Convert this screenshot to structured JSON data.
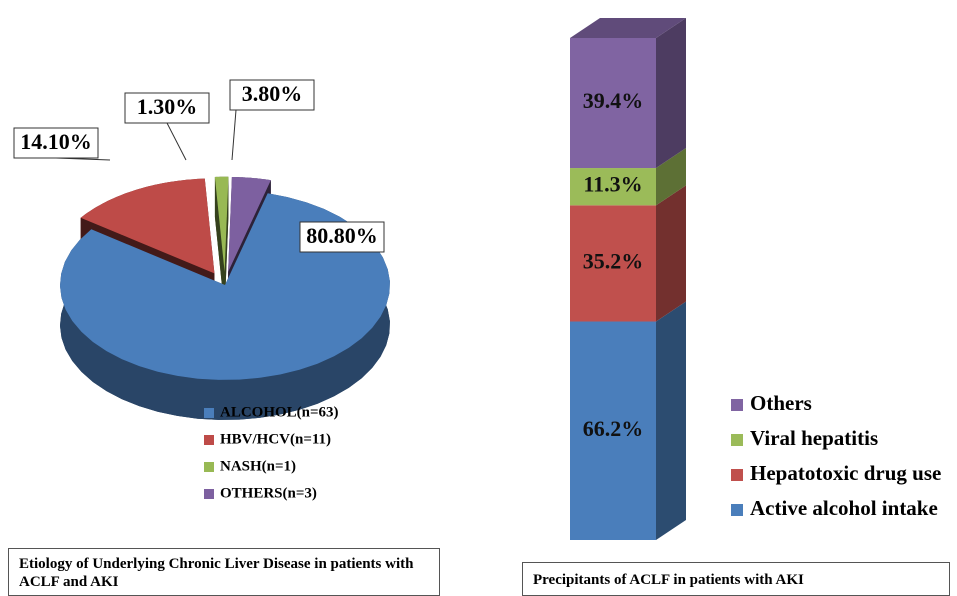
{
  "chart_data": [
    {
      "type": "pie",
      "title": "Etiology of Underlying Chronic Liver Disease in patients with ACLF and AKI",
      "categories": [
        "ALCOHOL(n=63)",
        "HBV/HCV(n=11)",
        "NASH(n=1)",
        "OTHERS(n=3)"
      ],
      "values": [
        80.8,
        14.1,
        1.3,
        3.8
      ],
      "value_labels": [
        "80.80%",
        "14.10%",
        "1.30%",
        "3.80%"
      ],
      "colors": [
        "#4a7ebb",
        "#be4b48",
        "#98b954",
        "#7d60a0"
      ]
    },
    {
      "type": "stacked_bar",
      "title": "Precipitants of ACLF in patients with AKI",
      "series": [
        {
          "name": "Active alcohol intake",
          "color": "#4a7ebb",
          "values": [
            66.2
          ],
          "value_labels": [
            "66.2%"
          ]
        },
        {
          "name": "Hepatotoxic drug use",
          "color": "#c0504d",
          "values": [
            35.2
          ],
          "value_labels": [
            "35.2%"
          ]
        },
        {
          "name": "Viral hepatitis",
          "color": "#9bbb59",
          "values": [
            11.3
          ],
          "value_labels": [
            "11.3%"
          ]
        },
        {
          "name": "Others",
          "color": "#8064a2",
          "values": [
            39.4
          ],
          "value_labels": [
            "39.4%"
          ]
        }
      ]
    }
  ]
}
